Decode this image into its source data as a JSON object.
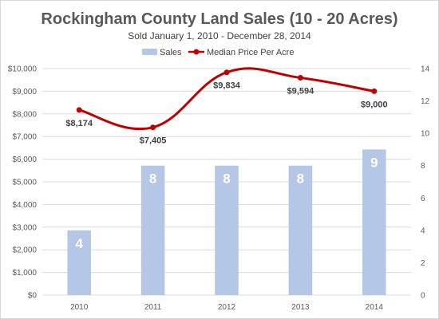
{
  "chart_data": {
    "type": "bar",
    "title": "Rockingham County Land Sales (10 - 20 Acres)",
    "subtitle": "Sold January 1, 2010 - December 28, 2014",
    "categories": [
      "2010",
      "2011",
      "2012",
      "2013",
      "2014"
    ],
    "series": [
      {
        "name": "Sales",
        "type": "bar",
        "axis": "right",
        "values": [
          4,
          8,
          8,
          8,
          9
        ],
        "labels": [
          "4",
          "8",
          "8",
          "8",
          "9"
        ],
        "color": "#b4c7e7"
      },
      {
        "name": "Median Price Per Acre",
        "type": "line",
        "axis": "left",
        "smooth": true,
        "values": [
          8174,
          7405,
          9834,
          9594,
          9000
        ],
        "labels": [
          "$8,174",
          "$7,405",
          "$9,834",
          "$9,594",
          "$9,000"
        ],
        "color": "#c00000"
      }
    ],
    "left_axis": {
      "ylim": [
        0,
        10000
      ],
      "ticks": [
        0,
        1000,
        2000,
        3000,
        4000,
        5000,
        6000,
        7000,
        8000,
        9000,
        10000
      ],
      "tick_labels": [
        "$0",
        "$1,000",
        "$2,000",
        "$3,000",
        "$4,000",
        "$5,000",
        "$6,000",
        "$7,000",
        "$8,000",
        "$9,000",
        "$10,000"
      ]
    },
    "right_axis": {
      "ylim": [
        0,
        14
      ],
      "ticks": [
        0,
        2,
        4,
        6,
        8,
        10,
        12,
        14
      ],
      "tick_labels": [
        "0",
        "2",
        "4",
        "6",
        "8",
        "10",
        "12",
        "14"
      ]
    },
    "grid": true,
    "legend_position": "top-center",
    "xlabel": "",
    "ylabel": ""
  }
}
